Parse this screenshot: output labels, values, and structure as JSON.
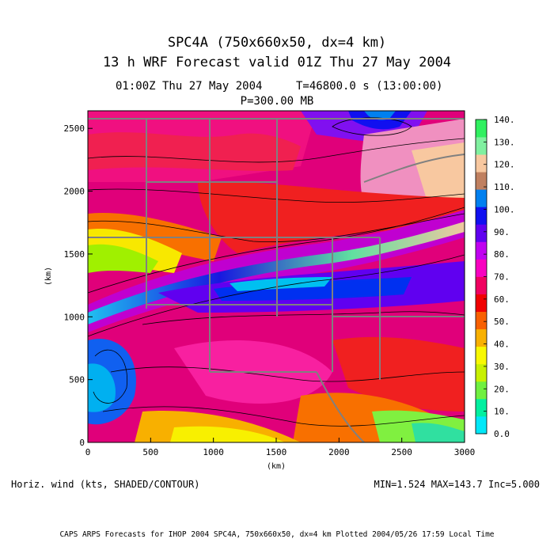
{
  "header": {
    "title_line1": "SPC4A (750x660x50, dx=4 km)",
    "title_line2": "13 h WRF Forecast valid 01Z Thu 27 May 2004",
    "valid_time": "01:00Z Thu 27 May 2004",
    "model_time": "T=46800.0 s (13:00:00)",
    "level": "P=300.00 MB"
  },
  "footer": {
    "variable": "Horiz. wind (kts, SHADED/CONTOUR)",
    "stats": "MIN=1.524 MAX=143.7 Inc=5.000",
    "credit": "CAPS ARPS Forecasts for IHOP 2004   SPC4A, 750x660x50, dx=4 km   Plotted 2004/05/26 17:59 Local Time"
  },
  "colors": {
    "frame": "#000000",
    "state_borders": "#808080",
    "contours": "#000000",
    "background": "#ffffff"
  },
  "chart_data": {
    "type": "heatmap",
    "title": "Horiz. wind (kts)",
    "xlabel": "(km)",
    "ylabel": "(km)",
    "xlim": [
      0,
      3000
    ],
    "ylim": [
      0,
      2640
    ],
    "xticks": [
      0,
      500,
      1000,
      1500,
      2000,
      2500,
      3000
    ],
    "yticks": [
      0,
      500,
      1000,
      1500,
      2000,
      2500
    ],
    "min": 1.524,
    "max": 143.7,
    "increment": 5.0,
    "colorbar": {
      "levels": [
        0,
        10,
        20,
        30,
        40,
        50,
        60,
        70,
        80,
        90,
        100,
        110,
        120,
        130,
        140
      ],
      "labels": [
        "0.0",
        "10.",
        "20.",
        "30.",
        "40.",
        "50.",
        "60.",
        "70.",
        "80.",
        "90.",
        "100.",
        "110.",
        "120.",
        "130.",
        "140."
      ],
      "colors": [
        "#00e8f8",
        "#00f0a0",
        "#70f040",
        "#c8f000",
        "#f8f800",
        "#f8b000",
        "#f86000",
        "#f00000",
        "#f00060",
        "#f800c0",
        "#c000f0",
        "#6000f0",
        "#1010f0",
        "#0080f0",
        "#c08060",
        "#f8c8a0",
        "#80f0a0",
        "#30f060"
      ]
    }
  }
}
